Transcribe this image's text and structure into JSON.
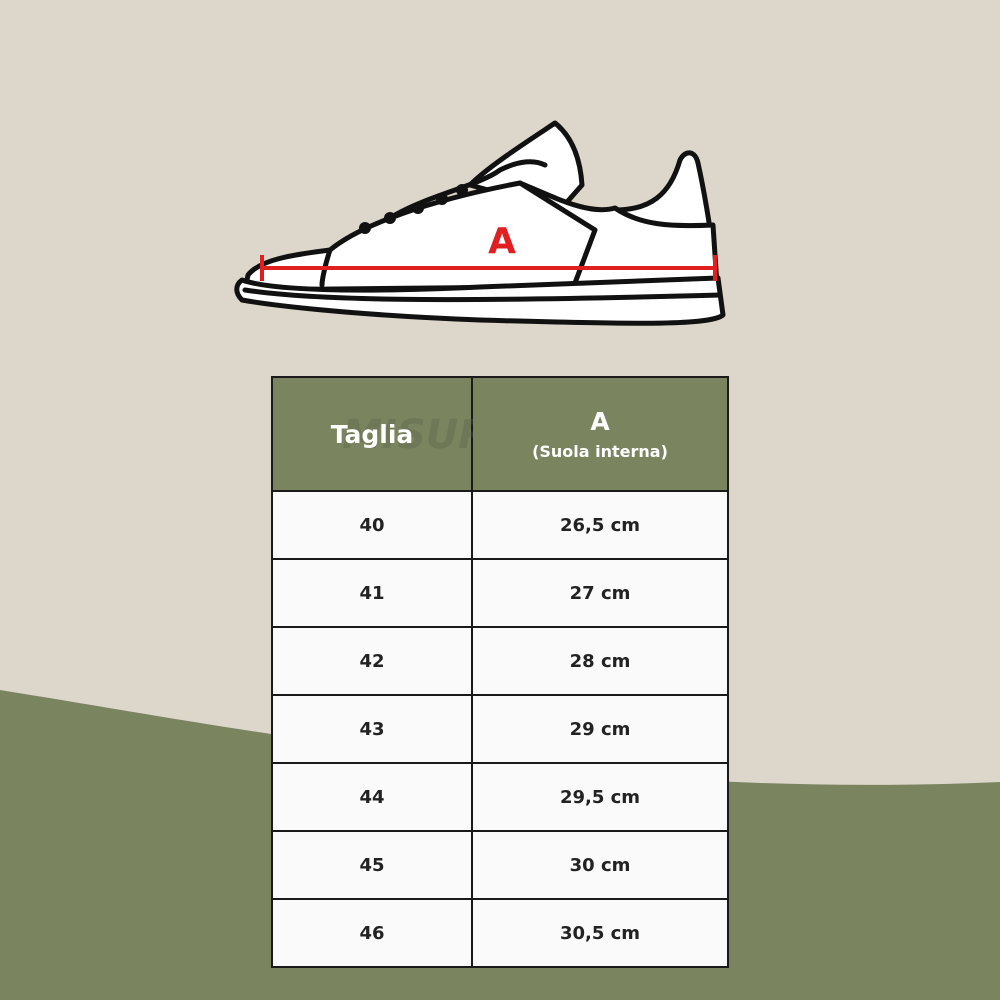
{
  "colors": {
    "background": "#dcd6cb",
    "accent_green": "#7a8560",
    "measure_red": "#e02020"
  },
  "diagram": {
    "measure_label": "A"
  },
  "table": {
    "watermark": "MISURE IN CM",
    "headers": [
      {
        "main": "Taglia",
        "sub": ""
      },
      {
        "main": "A",
        "sub": "(Suola interna)"
      }
    ],
    "rows": [
      {
        "size": "40",
        "length": "26,5 cm"
      },
      {
        "size": "41",
        "length": "27 cm"
      },
      {
        "size": "42",
        "length": "28 cm"
      },
      {
        "size": "43",
        "length": "29 cm"
      },
      {
        "size": "44",
        "length": "29,5 cm"
      },
      {
        "size": "45",
        "length": "30 cm"
      },
      {
        "size": "46",
        "length": "30,5 cm"
      }
    ]
  }
}
